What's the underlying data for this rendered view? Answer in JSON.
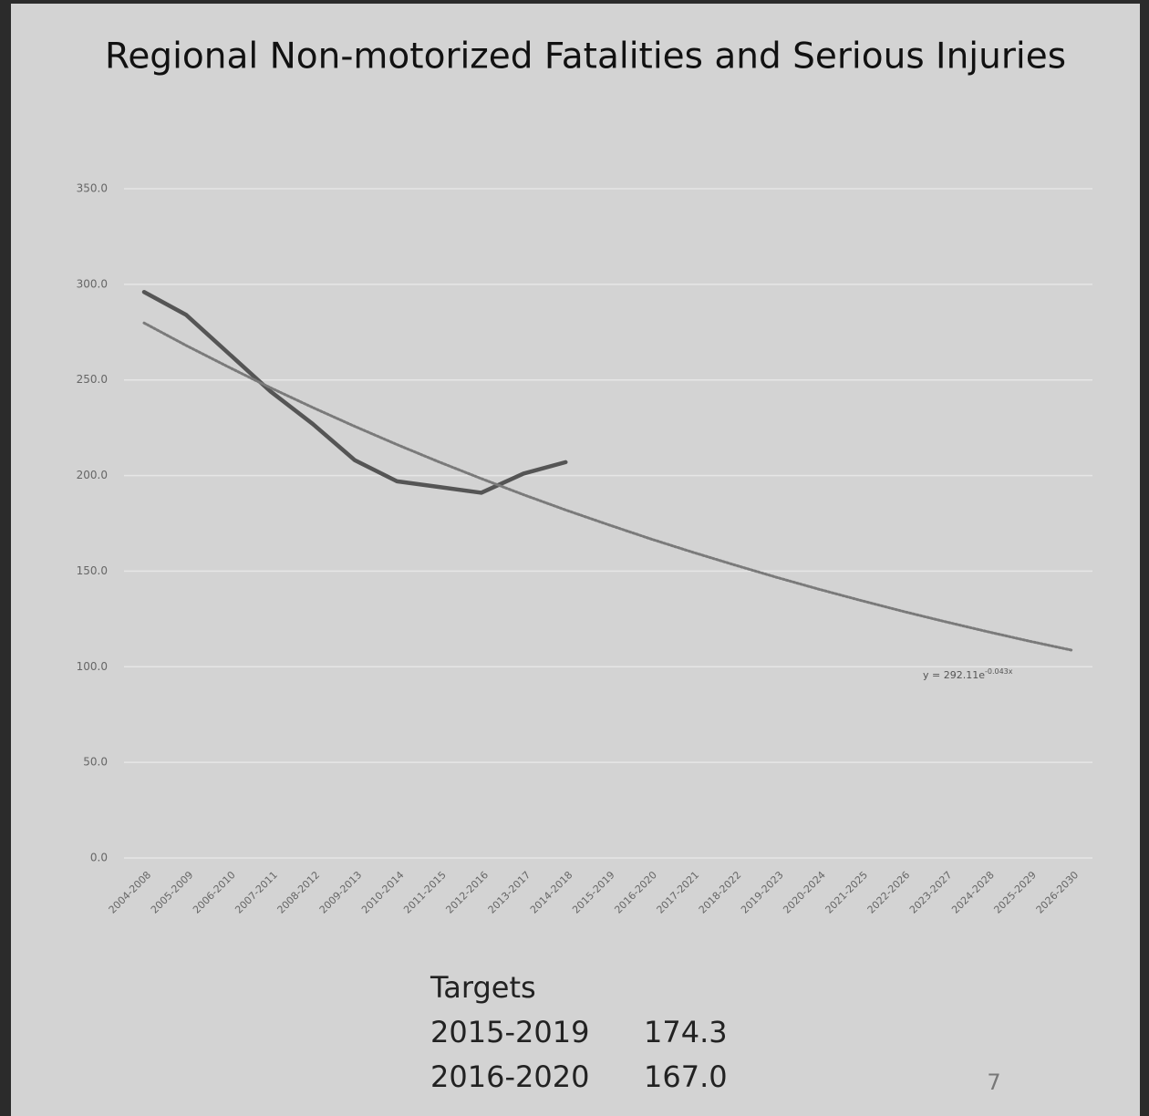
{
  "chart_data": {
    "type": "line",
    "title": "Regional Non-motorized Fatalities and Serious Injuries",
    "categories": [
      "2004-2008",
      "2005-2009",
      "2006-2010",
      "2007-2011",
      "2008-2012",
      "2009-2013",
      "2010-2014",
      "2011-2015",
      "2012-2016",
      "2013-2017",
      "2014-2018",
      "2015-2019",
      "2016-2020",
      "2017-2021",
      "2018-2022",
      "2019-2023",
      "2020-2024",
      "2021-2025",
      "2022-2026",
      "2023-2027",
      "2024-2028",
      "2025-2029",
      "2026-2030"
    ],
    "series": [
      {
        "color": "#555555",
        "line_style": "solid",
        "values": [
          296,
          284,
          264,
          244,
          227,
          208,
          197,
          194,
          191,
          201,
          207,
          null,
          null,
          null,
          null,
          null,
          null,
          null,
          null,
          null,
          null,
          null,
          null
        ]
      },
      {
        "color": "#7a7a7a",
        "line_style": "dotted",
        "values": [
          279.8,
          268.0,
          256.8,
          245.9,
          235.6,
          225.7,
          216.2,
          207.1,
          198.4,
          190.0,
          182.0,
          174.4,
          167.0,
          160.0,
          153.3,
          146.8,
          140.6,
          134.7,
          129.0,
          123.6,
          118.4,
          113.4,
          108.7
        ]
      }
    ],
    "ylim": [
      0,
      350
    ],
    "yticks": [
      {
        "value": 0,
        "label": "0.0"
      },
      {
        "value": 50,
        "label": "50.0"
      },
      {
        "value": 100,
        "label": "100.0"
      },
      {
        "value": 150,
        "label": "150.0"
      },
      {
        "value": 200,
        "label": "200.0"
      },
      {
        "value": 250,
        "label": "250.0"
      },
      {
        "value": 300,
        "label": "300.0"
      },
      {
        "value": 350,
        "label": "350.0"
      }
    ],
    "grid": true,
    "annotation": {
      "text": "y = 292.11e",
      "exponent": "-0.043x"
    }
  },
  "targets": {
    "title": "Targets",
    "rows": [
      [
        "2015-2019",
        "174.3"
      ],
      [
        "2016-2020",
        "167.0"
      ]
    ]
  },
  "page_number": "7"
}
